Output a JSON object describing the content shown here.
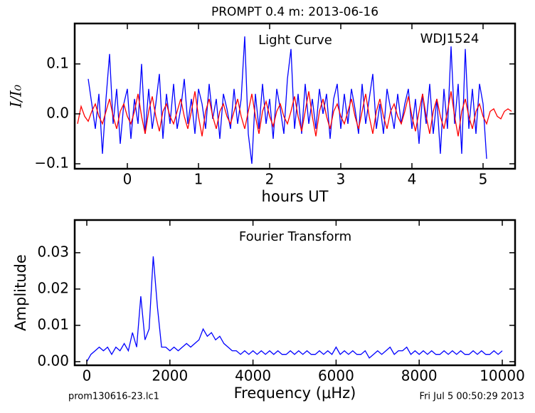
{
  "chart_data": [
    {
      "type": "line",
      "title": "PROMPT 0.4 m:  2013-06-16",
      "xlabel": "hours UT",
      "ylabel": "I/I₀",
      "annotations": [
        "Light Curve",
        "WDJ1524"
      ],
      "xlim": [
        -0.74,
        5.45
      ],
      "ylim": [
        -0.11,
        0.181
      ],
      "xticks": [
        0,
        1,
        2,
        3,
        4,
        5
      ],
      "yticks": [
        {
          "value": -0.1,
          "label": "−0.1"
        },
        {
          "value": 0,
          "label": "0.0"
        },
        0.1
      ],
      "series": [
        {
          "color": "#0000ff",
          "x": [
            -0.55,
            -0.5,
            -0.45,
            -0.4,
            -0.35,
            -0.3,
            -0.25,
            -0.2,
            -0.15,
            -0.1,
            -0.05,
            0,
            0.05,
            0.1,
            0.15,
            0.2,
            0.25,
            0.3,
            0.35,
            0.4,
            0.45,
            0.5,
            0.55,
            0.6,
            0.65,
            0.7,
            0.75,
            0.8,
            0.85,
            0.9,
            0.95,
            1,
            1.05,
            1.1,
            1.15,
            1.2,
            1.25,
            1.3,
            1.35,
            1.4,
            1.45,
            1.5,
            1.55,
            1.6,
            1.65,
            1.7,
            1.75,
            1.8,
            1.85,
            1.9,
            1.95,
            2,
            2.05,
            2.1,
            2.15,
            2.2,
            2.25,
            2.3,
            2.35,
            2.4,
            2.45,
            2.5,
            2.55,
            2.6,
            2.65,
            2.7,
            2.75,
            2.8,
            2.85,
            2.9,
            2.95,
            3,
            3.05,
            3.1,
            3.15,
            3.2,
            3.25,
            3.3,
            3.35,
            3.4,
            3.45,
            3.5,
            3.55,
            3.6,
            3.65,
            3.7,
            3.75,
            3.8,
            3.85,
            3.9,
            3.95,
            4,
            4.05,
            4.1,
            4.15,
            4.2,
            4.25,
            4.3,
            4.35,
            4.4,
            4.45,
            4.5,
            4.55,
            4.6,
            4.65,
            4.7,
            4.75,
            4.8,
            4.85,
            4.9,
            4.95,
            5,
            5.05
          ],
          "values": [
            0.07,
            0.02,
            -0.03,
            0.04,
            -0.08,
            0.03,
            0.12,
            -0.02,
            0.05,
            -0.06,
            0.02,
            0.05,
            -0.05,
            0.03,
            -0.02,
            0.1,
            -0.04,
            0.05,
            -0.03,
            0.02,
            0.08,
            -0.05,
            0.04,
            -0.02,
            0.06,
            -0.03,
            0.01,
            0.07,
            -0.02,
            0.03,
            -0.04,
            0.05,
            0.02,
            -0.03,
            0.06,
            -0.01,
            0.03,
            -0.05,
            0.04,
            0.01,
            -0.03,
            0.05,
            -0.02,
            0.03,
            0.155,
            -0.04,
            -0.1,
            0.04,
            -0.03,
            0.06,
            -0.02,
            0.03,
            -0.05,
            0.05,
            0.01,
            -0.04,
            0.07,
            0.13,
            -0.03,
            0.04,
            -0.04,
            0.06,
            -0.02,
            0.03,
            -0.03,
            0.05,
            0,
            0.04,
            -0.05,
            0.03,
            0.06,
            -0.03,
            0.04,
            -0.02,
            0.05,
            0.01,
            -0.04,
            0.06,
            -0.02,
            0.03,
            0.08,
            -0.03,
            0.02,
            -0.04,
            0.05,
            0.01,
            -0.03,
            0.04,
            -0.02,
            0.02,
            0.05,
            -0.03,
            0.03,
            -0.06,
            0.04,
            -0.02,
            0.06,
            -0.04,
            0.03,
            -0.08,
            0.05,
            -0.03,
            0.135,
            -0.02,
            0.06,
            -0.08,
            0.13,
            -0.03,
            0.05,
            -0.04,
            0.06,
            0.02,
            -0.09
          ]
        },
        {
          "color": "#ff0000",
          "x": [
            -0.7,
            -0.65,
            -0.6,
            -0.55,
            -0.5,
            -0.45,
            -0.4,
            -0.35,
            -0.3,
            -0.25,
            -0.2,
            -0.15,
            -0.1,
            -0.05,
            0,
            0.05,
            0.1,
            0.15,
            0.2,
            0.25,
            0.3,
            0.35,
            0.4,
            0.45,
            0.5,
            0.55,
            0.6,
            0.65,
            0.7,
            0.75,
            0.8,
            0.85,
            0.9,
            0.95,
            1,
            1.05,
            1.1,
            1.15,
            1.2,
            1.25,
            1.3,
            1.35,
            1.4,
            1.45,
            1.5,
            1.55,
            1.6,
            1.65,
            1.7,
            1.75,
            1.8,
            1.85,
            1.9,
            1.95,
            2,
            2.05,
            2.1,
            2.15,
            2.2,
            2.25,
            2.3,
            2.35,
            2.4,
            2.45,
            2.5,
            2.55,
            2.6,
            2.65,
            2.7,
            2.75,
            2.8,
            2.85,
            2.9,
            2.95,
            3,
            3.05,
            3.1,
            3.15,
            3.2,
            3.25,
            3.3,
            3.35,
            3.4,
            3.45,
            3.5,
            3.55,
            3.6,
            3.65,
            3.7,
            3.75,
            3.8,
            3.85,
            3.9,
            3.95,
            4,
            4.05,
            4.1,
            4.15,
            4.2,
            4.25,
            4.3,
            4.35,
            4.4,
            4.45,
            4.5,
            4.55,
            4.6,
            4.65,
            4.7,
            4.75,
            4.8,
            4.85,
            4.9,
            4.95,
            5,
            5.05,
            5.1,
            5.15,
            5.2,
            5.25,
            5.3,
            5.35,
            5.4
          ],
          "values": [
            -0.02,
            0.015,
            -0.005,
            -0.015,
            0.005,
            0.02,
            -0.005,
            -0.02,
            0.005,
            0.03,
            -0.005,
            -0.03,
            0.005,
            0.02,
            -0.005,
            -0.02,
            0.005,
            0.04,
            -0.005,
            -0.04,
            0.005,
            0.035,
            -0.005,
            -0.035,
            0.005,
            0.02,
            -0.005,
            -0.02,
            0.005,
            0.03,
            -0.005,
            -0.03,
            0.005,
            0.045,
            -0.005,
            -0.045,
            0.005,
            0.03,
            -0.005,
            -0.03,
            0.005,
            0.02,
            -0.005,
            -0.02,
            0.005,
            0.03,
            -0.005,
            -0.03,
            0.005,
            0.04,
            -0.005,
            -0.04,
            0.005,
            0.025,
            -0.005,
            -0.025,
            0.005,
            0.02,
            -0.005,
            -0.02,
            0.005,
            0.035,
            -0.005,
            -0.035,
            0.005,
            0.045,
            -0.005,
            -0.045,
            0.005,
            0.03,
            -0.005,
            -0.03,
            0.005,
            0.02,
            -0.005,
            -0.02,
            0.005,
            0.03,
            -0.005,
            -0.03,
            0.005,
            0.04,
            -0.005,
            -0.04,
            0.005,
            0.03,
            -0.005,
            -0.03,
            0.005,
            0.02,
            -0.005,
            -0.02,
            0.005,
            0.035,
            -0.005,
            -0.035,
            0.005,
            0.04,
            -0.005,
            -0.04,
            0.005,
            0.03,
            -0.005,
            -0.03,
            0.005,
            0.045,
            -0.005,
            -0.045,
            0.005,
            0.03,
            -0.005,
            -0.03,
            0.005,
            0.02,
            -0.005,
            -0.02,
            0.005,
            0.01,
            -0.005,
            -0.01,
            0.005,
            0.01,
            0.005
          ]
        }
      ]
    },
    {
      "type": "line",
      "xlabel": "Frequency (μHz)",
      "ylabel": "Amplitude",
      "annotations": [
        "Fourier Transform"
      ],
      "xlim": [
        -291,
        10308
      ],
      "ylim": [
        -0.001,
        0.039
      ],
      "xticks": [
        0,
        2000,
        4000,
        6000,
        8000,
        10000
      ],
      "yticks": [
        {
          "value": 0,
          "label": "0.00"
        },
        {
          "value": 0.01,
          "label": "0.01"
        },
        {
          "value": 0.02,
          "label": "0.02"
        },
        {
          "value": 0.03,
          "label": "0.03"
        }
      ],
      "series": [
        {
          "color": "#0000ff",
          "x": [
            0,
            100,
            200,
            300,
            400,
            500,
            600,
            700,
            800,
            900,
            1000,
            1100,
            1200,
            1300,
            1400,
            1500,
            1600,
            1700,
            1800,
            1900,
            2000,
            2100,
            2200,
            2300,
            2400,
            2500,
            2600,
            2700,
            2800,
            2900,
            3000,
            3100,
            3200,
            3300,
            3400,
            3500,
            3600,
            3700,
            3800,
            3900,
            4000,
            4100,
            4200,
            4300,
            4400,
            4500,
            4600,
            4700,
            4800,
            4900,
            5000,
            5100,
            5200,
            5300,
            5400,
            5500,
            5600,
            5700,
            5800,
            5900,
            6000,
            6100,
            6200,
            6300,
            6400,
            6500,
            6600,
            6700,
            6800,
            6900,
            7000,
            7100,
            7200,
            7300,
            7400,
            7500,
            7600,
            7700,
            7800,
            7900,
            8000,
            8100,
            8200,
            8300,
            8400,
            8500,
            8600,
            8700,
            8800,
            8900,
            9000,
            9100,
            9200,
            9300,
            9400,
            9500,
            9600,
            9700,
            9800,
            9900,
            10000
          ],
          "values": [
            0,
            0.002,
            0.003,
            0.004,
            0.003,
            0.004,
            0.002,
            0.004,
            0.003,
            0.005,
            0.003,
            0.008,
            0.004,
            0.018,
            0.006,
            0.009,
            0.029,
            0.015,
            0.004,
            0.004,
            0.003,
            0.004,
            0.003,
            0.004,
            0.005,
            0.004,
            0.005,
            0.006,
            0.009,
            0.007,
            0.008,
            0.006,
            0.007,
            0.005,
            0.004,
            0.003,
            0.003,
            0.002,
            0.003,
            0.002,
            0.003,
            0.002,
            0.003,
            0.002,
            0.003,
            0.002,
            0.003,
            0.002,
            0.002,
            0.003,
            0.002,
            0.003,
            0.002,
            0.003,
            0.002,
            0.002,
            0.003,
            0.002,
            0.003,
            0.002,
            0.004,
            0.002,
            0.003,
            0.002,
            0.003,
            0.002,
            0.002,
            0.003,
            0.001,
            0.002,
            0.003,
            0.002,
            0.003,
            0.004,
            0.002,
            0.003,
            0.003,
            0.004,
            0.002,
            0.003,
            0.002,
            0.003,
            0.002,
            0.003,
            0.002,
            0.002,
            0.003,
            0.002,
            0.003,
            0.002,
            0.003,
            0.002,
            0.002,
            0.003,
            0.002,
            0.003,
            0.002,
            0.002,
            0.003,
            0.002,
            0.003
          ]
        }
      ]
    }
  ],
  "footer_left": "prom130616-23.lc1",
  "footer_right": "Fri Jul  5 00:50:29 2013"
}
